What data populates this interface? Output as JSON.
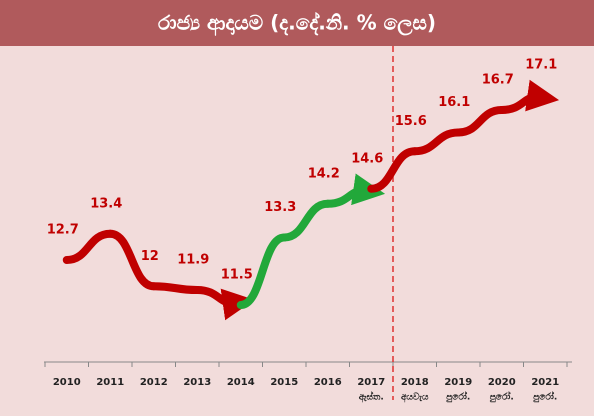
{
  "chart_data": {
    "type": "line",
    "title": "රාජ්‍ය ආදායම (ද.දේ.නි. % ලෙස)",
    "categories": [
      "2010",
      "2011",
      "2012",
      "2013",
      "2014",
      "2015",
      "2016",
      "2017",
      "2018",
      "2019",
      "2020",
      "2021"
    ],
    "category_notes": [
      null,
      null,
      null,
      null,
      null,
      null,
      null,
      "ඇස්ත.",
      "අයවැය",
      "පුරෝ.",
      "පුරෝ.",
      "පුරෝ."
    ],
    "series": [
      {
        "name": "රාජ්‍ය ආදායම",
        "values": [
          12.7,
          13.4,
          12.0,
          11.9,
          11.5,
          13.3,
          14.2,
          14.6,
          15.6,
          16.1,
          16.7,
          17.1
        ]
      }
    ],
    "segment_colors": [
      "#c00000",
      "#c00000",
      "#c00000",
      "#c00000",
      "#22a83a",
      "#22a83a",
      "#22a83a",
      "#c00000",
      "#c00000",
      "#c00000",
      "#c00000"
    ],
    "divider_color": "#e03030"
  }
}
